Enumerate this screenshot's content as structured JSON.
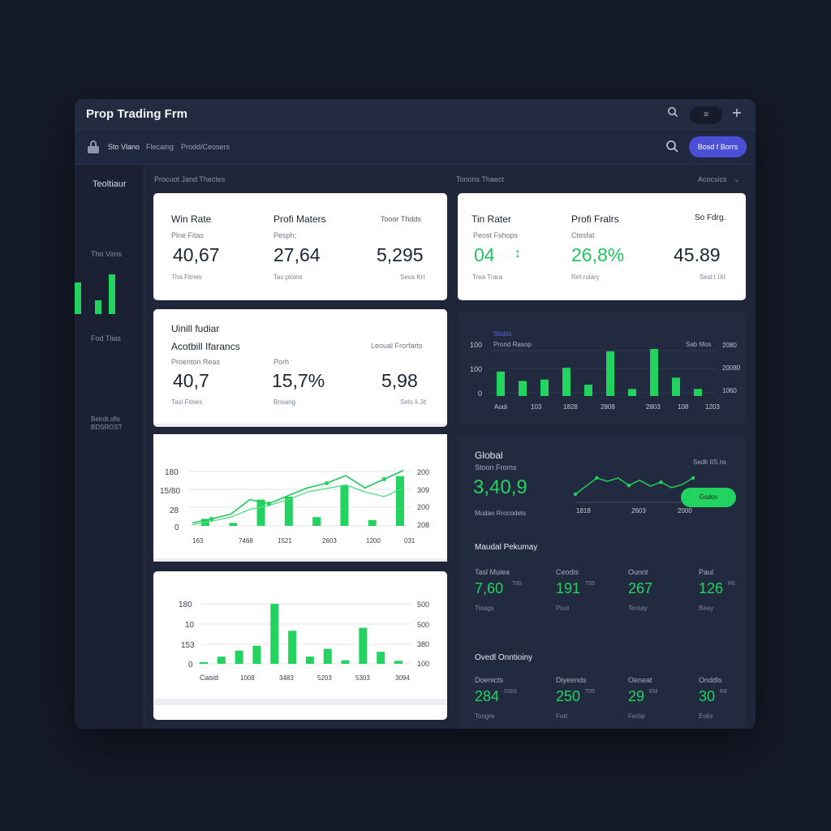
{
  "app": {
    "title": "Prop Trading Frm"
  },
  "titlebar": {
    "menu_label": "≡"
  },
  "toolbar": {
    "nav": [
      "Sto Vlano",
      "Flecaing",
      "Prodd/Ceosers"
    ],
    "cta_label": "Bosd f Borrs"
  },
  "sidebar": {
    "title": "Teoltiaur",
    "label_1": "Tho Vims",
    "label_2": "Fod Tlias",
    "label_3": "Betrdt.ofis",
    "label_4": "BDSROST",
    "bars": [
      0.75,
      0.33,
      0.95
    ]
  },
  "sections": {
    "left": "Procuot Jand Thectes",
    "right": "Tonons Thaect",
    "right_dropdown": "Acocsics"
  },
  "colors": {
    "accent": "#4b4fd6",
    "green": "#22d45f"
  },
  "kpi_left": {
    "labels": [
      "Win Rate",
      "Profi Maters",
      "Tooor Thdds"
    ],
    "subs": [
      "Plne Fitas",
      "Pesph;",
      ""
    ],
    "values": [
      "40,67",
      "27,64",
      "5,295"
    ],
    "foots": [
      "Tha Fitnes",
      "Tas ploins",
      "Seos Krt"
    ]
  },
  "kpi_right": {
    "labels": [
      "Tin Rater",
      "Profi Fralrs",
      "So Fdrg."
    ],
    "subs": [
      "Peost Fshops",
      "Ctesfat",
      ""
    ],
    "values": [
      "04",
      "26,8%",
      "45.89"
    ],
    "arrow": "↕",
    "foots": [
      "Trea Trara",
      "Ret rulary",
      "Sesl:t IXt"
    ]
  },
  "perf_card": {
    "eyebrow": "Uinill fudiar",
    "title": "Acotbill Ifarancs",
    "right_label": "Leoual Frorfarts",
    "labels": [
      "Proenton Reas",
      "Porh"
    ],
    "values": [
      "40,7",
      "15,7%",
      "5,98"
    ],
    "foots": [
      "Tasl Fitnes",
      "Bnsang",
      "Sets li Jit"
    ]
  },
  "line_chart": {
    "y_left": [
      "180",
      "15/80",
      "28",
      "0"
    ],
    "y_right": [
      "200",
      "309",
      "200",
      "208"
    ],
    "x_labels": [
      "163",
      "7468",
      "1521",
      "2603",
      "1200",
      "031"
    ]
  },
  "bar_chart_bottom": {
    "y_left": [
      "180",
      "10",
      "153",
      "0"
    ],
    "y_right": [
      "500",
      "500",
      "380",
      "100"
    ],
    "x_labels": [
      "Casid",
      "1008",
      "3483",
      "5203",
      "5303",
      "3094"
    ]
  },
  "bar_chart_right": {
    "eyebrow": "Sbdds",
    "legend": "Prond Rasop",
    "legend_right": "Sab Mos",
    "y_left": [
      "100",
      "100",
      "0"
    ],
    "y_right": [
      "2080",
      "20080",
      "1060"
    ],
    "x_labels": [
      "Aodi",
      "103",
      "1828",
      "2808",
      "2803",
      "108",
      "1203"
    ]
  },
  "global_card": {
    "title": "Global",
    "sub": "Stoon Froms",
    "value": "3,40,9",
    "foot": "Mudan Rrocodets",
    "right_label": "Sedk IIS ns",
    "x_labels": [
      "1818",
      "2603",
      "2000"
    ],
    "pill": "Gsdos"
  },
  "marital_section": {
    "title": "Maudal Pekumay",
    "items": [
      {
        "label": "Tasl Muiea",
        "value": "7,60",
        "small": "T85",
        "foot": "Tinags"
      },
      {
        "label": "Ceodis",
        "value": "191",
        "small": "T65",
        "foot": "Piud"
      },
      {
        "label": "Ounrit",
        "value": "267",
        "small": "",
        "foot": "Tentay"
      },
      {
        "label": "Paul",
        "value": "126",
        "small": "R6",
        "foot": "Beay"
      }
    ]
  },
  "overall_section": {
    "title": "Ovedl Onntioiny",
    "items": [
      {
        "label": "Doenicts",
        "value": "284",
        "small": "ISBS",
        "foot": "Tongre"
      },
      {
        "label": "Diyeends",
        "value": "250",
        "small": "T05",
        "foot": "Fort"
      },
      {
        "label": "Oeneat",
        "value": "29",
        "small": "Eld",
        "foot": "Fertar"
      },
      {
        "label": "Onddls",
        "value": "30",
        "small": "R8",
        "foot": "Eolis"
      }
    ]
  },
  "chart_data": [
    {
      "type": "line",
      "title": "",
      "series": [
        {
          "values": [
            0.05,
            0.12,
            0.2,
            0.45,
            0.38,
            0.52,
            0.65,
            0.73,
            0.86,
            0.65,
            0.8,
            0.95
          ]
        },
        {
          "values": [
            0.02,
            0.08,
            0.15,
            0.28,
            0.35,
            0.45,
            0.58,
            0.64,
            0.7,
            0.58,
            0.5,
            0.65
          ]
        }
      ],
      "bars": [
        0.12,
        0.05,
        0.45,
        0.5,
        0.15,
        0.7,
        0.1,
        0.85
      ]
    },
    {
      "type": "bar",
      "title": "",
      "values": [
        0.02,
        0.12,
        0.22,
        0.3,
        1.0,
        0.55,
        0.12,
        0.25,
        0.06,
        0.6,
        0.2,
        0.05
      ]
    },
    {
      "type": "bar",
      "title": "",
      "values": [
        0.52,
        0.32,
        0.35,
        0.6,
        0.24,
        0.95,
        0.15,
        1.0,
        0.39,
        0.15
      ]
    },
    {
      "type": "line",
      "title": "",
      "values": [
        0.25,
        0.5,
        0.75,
        0.65,
        0.75,
        0.52,
        0.68,
        0.5,
        0.62,
        0.45,
        0.55,
        0.75
      ]
    }
  ]
}
